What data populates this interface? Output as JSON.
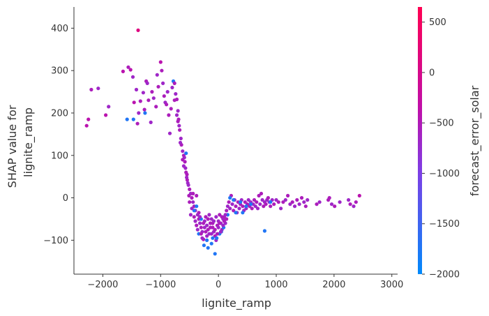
{
  "chart_data": {
    "type": "scatter",
    "xlabel": "lignite_ramp",
    "ylabel_line1": "SHAP value for",
    "ylabel_line2": "lignite_ramp",
    "colorbar_label": "forecast_error_solar",
    "xlim": [
      -2500,
      3100
    ],
    "ylim": [
      -180,
      450
    ],
    "xticks": [
      -2000,
      -1000,
      0,
      1000,
      2000,
      3000
    ],
    "xtick_labels": [
      "−2000",
      "−1000",
      "0",
      "1000",
      "2000",
      "3000"
    ],
    "yticks": [
      -100,
      0,
      100,
      200,
      300,
      400
    ],
    "ytick_labels": [
      "−100",
      "0",
      "100",
      "200",
      "300",
      "400"
    ],
    "colorbar_range": [
      -2000,
      650
    ],
    "colorbar_ticks": [
      -2000,
      -1500,
      -1000,
      -500,
      0,
      500
    ],
    "colorbar_tick_labels": [
      "−2000",
      "−1500",
      "−1000",
      "−500",
      "0",
      "500"
    ],
    "colormap": [
      "#008afb",
      "#7d3fe6",
      "#c00fa9",
      "#ff0052"
    ],
    "grid": false,
    "points": [
      [
        -1390,
        395,
        80
      ],
      [
        -2280,
        170,
        60
      ],
      [
        -2250,
        185,
        60
      ],
      [
        -2200,
        255,
        55
      ],
      [
        -2080,
        258,
        50
      ],
      [
        -1950,
        195,
        60
      ],
      [
        -1900,
        215,
        50
      ],
      [
        -1650,
        298,
        60
      ],
      [
        -1560,
        308,
        55
      ],
      [
        -1520,
        302,
        60
      ],
      [
        -1480,
        285,
        50
      ],
      [
        -1580,
        185,
        10
      ],
      [
        -1470,
        185,
        10
      ],
      [
        -1460,
        225,
        60
      ],
      [
        -1420,
        255,
        50
      ],
      [
        -1400,
        175,
        55
      ],
      [
        -1380,
        200,
        50
      ],
      [
        -1350,
        228,
        55
      ],
      [
        -1300,
        248,
        50
      ],
      [
        -1280,
        208,
        55
      ],
      [
        -1270,
        200,
        10
      ],
      [
        -1250,
        275,
        55
      ],
      [
        -1230,
        270,
        50
      ],
      [
        -1210,
        230,
        55
      ],
      [
        -1170,
        178,
        50
      ],
      [
        -1150,
        250,
        55
      ],
      [
        -1120,
        235,
        50
      ],
      [
        -1080,
        215,
        55
      ],
      [
        -1060,
        290,
        50
      ],
      [
        -1040,
        262,
        55
      ],
      [
        -1000,
        320,
        60
      ],
      [
        -980,
        300,
        55
      ],
      [
        -960,
        270,
        50
      ],
      [
        -940,
        240,
        55
      ],
      [
        -920,
        225,
        50
      ],
      [
        -900,
        220,
        55
      ],
      [
        -880,
        250,
        50
      ],
      [
        -860,
        195,
        55
      ],
      [
        -840,
        152,
        50
      ],
      [
        -820,
        210,
        55
      ],
      [
        -800,
        260,
        50
      ],
      [
        -780,
        275,
        10
      ],
      [
        -760,
        270,
        55
      ],
      [
        -740,
        245,
        50
      ],
      [
        -720,
        232,
        55
      ],
      [
        -700,
        205,
        50
      ],
      [
        -690,
        185,
        55
      ],
      [
        -680,
        170,
        50
      ],
      [
        -670,
        160,
        55
      ],
      [
        -650,
        140,
        50
      ],
      [
        -640,
        125,
        55
      ],
      [
        -620,
        110,
        50
      ],
      [
        -600,
        100,
        55
      ],
      [
        -590,
        95,
        50
      ],
      [
        -560,
        105,
        10
      ],
      [
        -580,
        85,
        55
      ],
      [
        -570,
        70,
        50
      ],
      [
        -560,
        60,
        55
      ],
      [
        -550,
        48,
        50
      ],
      [
        -540,
        42,
        55
      ],
      [
        -530,
        35,
        50
      ],
      [
        -545,
        55,
        55
      ],
      [
        -520,
        30,
        50
      ],
      [
        -500,
        20,
        55
      ],
      [
        -480,
        10,
        50
      ],
      [
        -460,
        0,
        55
      ],
      [
        -440,
        -10,
        50
      ],
      [
        -420,
        -20,
        55
      ],
      [
        -400,
        -30,
        50
      ],
      [
        -380,
        5,
        55
      ],
      [
        -360,
        -40,
        50
      ],
      [
        -340,
        -50,
        55
      ],
      [
        -320,
        -60,
        50
      ],
      [
        -300,
        -70,
        55
      ],
      [
        -280,
        -80,
        50
      ],
      [
        -260,
        -98,
        55
      ],
      [
        -240,
        -55,
        50
      ],
      [
        -220,
        -45,
        55
      ],
      [
        -200,
        -65,
        50
      ],
      [
        -180,
        -75,
        55
      ],
      [
        -160,
        -85,
        50
      ],
      [
        -140,
        -60,
        55
      ],
      [
        -120,
        -50,
        50
      ],
      [
        -100,
        -70,
        55
      ],
      [
        -80,
        -80,
        50
      ],
      [
        -60,
        -90,
        55
      ],
      [
        -40,
        -100,
        50
      ],
      [
        -20,
        -65,
        55
      ],
      [
        0,
        -55,
        50
      ],
      [
        20,
        -40,
        55
      ],
      [
        40,
        -60,
        50
      ],
      [
        60,
        -75,
        55
      ],
      [
        80,
        -50,
        50
      ],
      [
        100,
        -45,
        55
      ],
      [
        120,
        -60,
        50
      ],
      [
        -250,
        -112,
        10
      ],
      [
        -180,
        -118,
        10
      ],
      [
        -120,
        -108,
        10
      ],
      [
        -60,
        -132,
        10
      ],
      [
        -30,
        -95,
        10
      ],
      [
        20,
        -85,
        10
      ],
      [
        50,
        -80,
        10
      ],
      [
        -100,
        -95,
        10
      ],
      [
        -200,
        -100,
        10
      ],
      [
        90,
        -70,
        10
      ],
      [
        140,
        -30,
        55
      ],
      [
        160,
        -20,
        50
      ],
      [
        180,
        -10,
        55
      ],
      [
        200,
        -25,
        50
      ],
      [
        220,
        5,
        55
      ],
      [
        240,
        -15,
        50
      ],
      [
        260,
        -30,
        55
      ],
      [
        280,
        -5,
        50
      ],
      [
        300,
        -20,
        55
      ],
      [
        320,
        -35,
        50
      ],
      [
        340,
        -10,
        55
      ],
      [
        360,
        -25,
        50
      ],
      [
        380,
        -15,
        55
      ],
      [
        400,
        -5,
        50
      ],
      [
        420,
        -20,
        55
      ],
      [
        440,
        -30,
        50
      ],
      [
        460,
        -10,
        55
      ],
      [
        480,
        -25,
        50
      ],
      [
        500,
        -15,
        55
      ],
      [
        520,
        -5,
        50
      ],
      [
        540,
        -20,
        55
      ],
      [
        560,
        -10,
        50
      ],
      [
        580,
        -25,
        55
      ],
      [
        600,
        -15,
        50
      ],
      [
        620,
        -5,
        55
      ],
      [
        640,
        -20,
        50
      ],
      [
        660,
        -10,
        55
      ],
      [
        680,
        -25,
        50
      ],
      [
        700,
        5,
        55
      ],
      [
        720,
        -15,
        50
      ],
      [
        740,
        10,
        55
      ],
      [
        760,
        -5,
        50
      ],
      [
        780,
        -20,
        55
      ],
      [
        800,
        -10,
        50
      ],
      [
        820,
        -15,
        55
      ],
      [
        840,
        -5,
        50
      ],
      [
        860,
        0,
        55
      ],
      [
        880,
        -10,
        50
      ],
      [
        900,
        -20,
        55
      ],
      [
        930,
        -5,
        50
      ],
      [
        960,
        -15,
        55
      ],
      [
        1000,
        -5,
        50
      ],
      [
        1040,
        -10,
        55
      ],
      [
        1080,
        -25,
        50
      ],
      [
        1120,
        -10,
        55
      ],
      [
        1160,
        -5,
        50
      ],
      [
        1200,
        5,
        55
      ],
      [
        1240,
        -15,
        50
      ],
      [
        1280,
        -10,
        55
      ],
      [
        1320,
        -20,
        50
      ],
      [
        1360,
        -5,
        55
      ],
      [
        1400,
        -15,
        50
      ],
      [
        1440,
        0,
        55
      ],
      [
        1480,
        -10,
        50
      ],
      [
        1510,
        -20,
        55
      ],
      [
        1540,
        -5,
        50
      ],
      [
        1700,
        -15,
        55
      ],
      [
        1750,
        -10,
        50
      ],
      [
        1920,
        0,
        55
      ],
      [
        1960,
        -15,
        50
      ],
      [
        2010,
        -20,
        55
      ],
      [
        2100,
        -10,
        50
      ],
      [
        2280,
        -15,
        55
      ],
      [
        2340,
        -20,
        50
      ],
      [
        2380,
        -10,
        55
      ],
      [
        2440,
        5,
        60
      ],
      [
        2250,
        -5,
        50
      ],
      [
        1900,
        -5,
        55
      ],
      [
        380,
        -10,
        10
      ],
      [
        420,
        -35,
        10
      ],
      [
        160,
        -40,
        10
      ],
      [
        200,
        0,
        10
      ],
      [
        800,
        -78,
        10
      ],
      [
        900,
        -10,
        10
      ],
      [
        480,
        -20,
        10
      ],
      [
        260,
        -5,
        10
      ],
      [
        -380,
        -20,
        10
      ],
      [
        -420,
        -30,
        10
      ],
      [
        -340,
        -85,
        10
      ],
      [
        -300,
        -50,
        10
      ],
      [
        300,
        -35,
        10
      ],
      [
        560,
        -15,
        10
      ],
      [
        -420,
        -45,
        55
      ],
      [
        -400,
        -55,
        50
      ],
      [
        -380,
        -65,
        55
      ],
      [
        -360,
        -75,
        50
      ],
      [
        -340,
        -35,
        55
      ],
      [
        -320,
        -45,
        50
      ],
      [
        -300,
        -85,
        55
      ],
      [
        -280,
        -95,
        50
      ],
      [
        -260,
        -60,
        55
      ],
      [
        -240,
        -70,
        50
      ],
      [
        -220,
        -80,
        55
      ],
      [
        -200,
        -90,
        50
      ],
      [
        -180,
        -50,
        55
      ],
      [
        -160,
        -40,
        50
      ],
      [
        -140,
        -70,
        55
      ],
      [
        -120,
        -85,
        50
      ],
      [
        -100,
        -60,
        55
      ],
      [
        -80,
        -55,
        50
      ],
      [
        -60,
        -75,
        55
      ],
      [
        -40,
        -45,
        50
      ],
      [
        -20,
        -85,
        55
      ],
      [
        0,
        -70,
        50
      ],
      [
        20,
        -60,
        55
      ],
      [
        40,
        -80,
        50
      ],
      [
        60,
        -45,
        55
      ],
      [
        80,
        -65,
        50
      ],
      [
        100,
        -55,
        55
      ],
      [
        120,
        -40,
        50
      ],
      [
        140,
        -50,
        55
      ],
      [
        -500,
        -10,
        55
      ],
      [
        -460,
        -25,
        50
      ],
      [
        -440,
        10,
        55
      ],
      [
        -480,
        -40,
        50
      ],
      [
        -510,
        5,
        55
      ],
      [
        -600,
        75,
        50
      ],
      [
        -620,
        90,
        55
      ],
      [
        -660,
        130,
        50
      ],
      [
        -700,
        180,
        55
      ],
      [
        -720,
        195,
        50
      ],
      [
        -760,
        230,
        55
      ]
    ]
  }
}
